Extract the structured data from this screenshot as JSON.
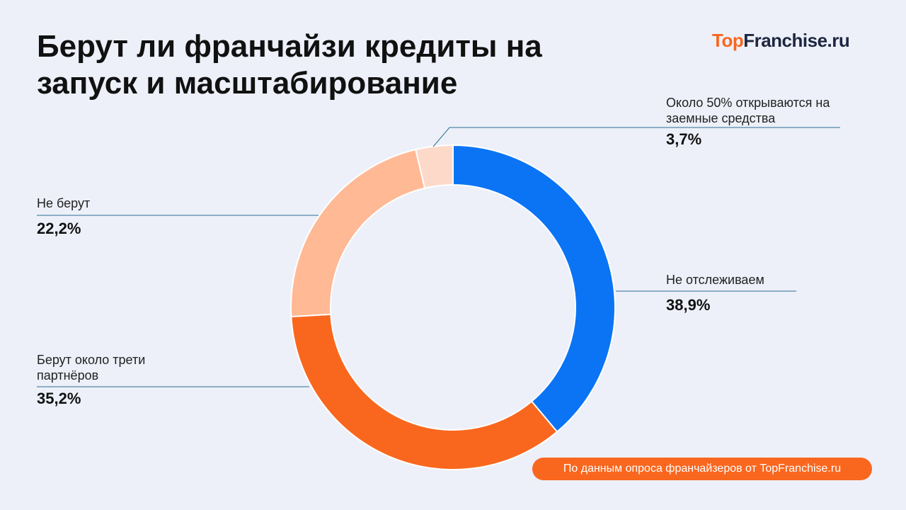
{
  "chart_data": {
    "type": "donut",
    "title": "Берут ли франчайзи кредиты на запуск и масштабирование",
    "categories": [
      "Не отслеживаем",
      "Берут около трети партнёров",
      "Не берут",
      "Около 50% открываются на заемные средства"
    ],
    "values": [
      38.9,
      35.2,
      22.2,
      3.7
    ],
    "value_labels": [
      "38,9%",
      "35,2%",
      "22,2%",
      "3,7%"
    ],
    "colors": [
      "#0a74f5",
      "#f9671e",
      "#ffb995",
      "#fdd9c9"
    ]
  },
  "logo": [
    "Top",
    "Franchise.ru"
  ],
  "source": "По данным опроса франчайзеров от TopFranchise.ru"
}
